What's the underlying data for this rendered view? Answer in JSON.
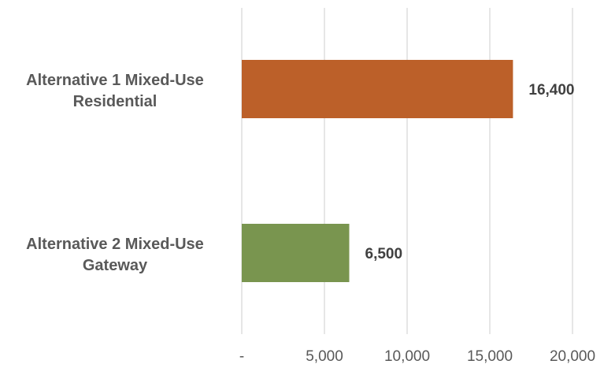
{
  "chart_data": {
    "type": "bar",
    "orientation": "horizontal",
    "title": "",
    "xlabel": "",
    "ylabel": "",
    "categories": [
      "Alternative 1 Mixed-Use Residential",
      "Alternative 2 Mixed-Use Gateway"
    ],
    "category_lines": [
      [
        "Alternative 1 Mixed-Use",
        "Residential"
      ],
      [
        "Alternative 2 Mixed-Use",
        "Gateway"
      ]
    ],
    "values": [
      16400,
      6500
    ],
    "data_labels": [
      "16,400",
      "6,500"
    ],
    "bar_colors": [
      "#bc6029",
      "#79954f"
    ],
    "xlim": [
      0,
      20000
    ],
    "x_ticks": [
      0,
      5000,
      10000,
      15000,
      20000
    ],
    "x_tick_labels": [
      "-",
      "5,000",
      "10,000",
      "15,000",
      "20,000"
    ],
    "grid": "vertical",
    "gridline_color": "#d9d9d9",
    "legend": "none"
  }
}
